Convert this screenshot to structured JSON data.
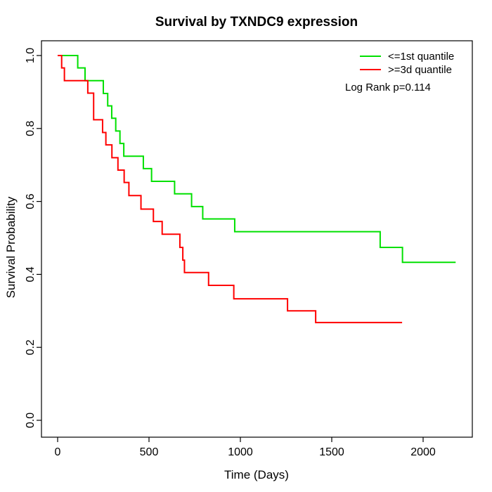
{
  "chart_data": {
    "type": "line",
    "subtype": "kaplan-meier-step-survival",
    "title": "Survival by TXNDC9 expression",
    "xlabel": "Time (Days)",
    "ylabel": "Survival Probability",
    "grid": false,
    "legend_position": "top-right",
    "annotation": "Log Rank p=0.114",
    "xlim": [
      -88,
      2265
    ],
    "ylim": [
      -0.04,
      1.04
    ],
    "x_ticks": [
      {
        "value": 0,
        "label": "0"
      },
      {
        "value": 500,
        "label": "500"
      },
      {
        "value": 1000,
        "label": "1000"
      },
      {
        "value": 1500,
        "label": "1500"
      },
      {
        "value": 2000,
        "label": "2000"
      }
    ],
    "y_ticks": [
      {
        "value": 0.0,
        "label": "0.0"
      },
      {
        "value": 0.2,
        "label": "0.2"
      },
      {
        "value": 0.4,
        "label": "0.4"
      },
      {
        "value": 0.6,
        "label": "0.6"
      },
      {
        "value": 0.8,
        "label": "0.8"
      },
      {
        "value": 1.0,
        "label": "1.0"
      }
    ],
    "series": [
      {
        "name": "<=1st quantile",
        "color": "#00e000",
        "end_time": 2178,
        "points": [
          [
            0,
            1.0
          ],
          [
            110,
            0.966
          ],
          [
            150,
            0.931
          ],
          [
            250,
            0.896
          ],
          [
            274,
            0.862
          ],
          [
            296,
            0.828
          ],
          [
            318,
            0.793
          ],
          [
            341,
            0.759
          ],
          [
            362,
            0.724
          ],
          [
            469,
            0.69
          ],
          [
            514,
            0.655
          ],
          [
            640,
            0.621
          ],
          [
            733,
            0.586
          ],
          [
            794,
            0.552
          ],
          [
            969,
            0.517
          ],
          [
            1765,
            0.474
          ],
          [
            1887,
            0.433
          ]
        ]
      },
      {
        "name": ">=3d quantile",
        "color": "#ff0000",
        "end_time": 1885,
        "points": [
          [
            0,
            1.0
          ],
          [
            22,
            0.966
          ],
          [
            37,
            0.931
          ],
          [
            165,
            0.897
          ],
          [
            197,
            0.824
          ],
          [
            246,
            0.789
          ],
          [
            264,
            0.755
          ],
          [
            297,
            0.72
          ],
          [
            330,
            0.686
          ],
          [
            364,
            0.652
          ],
          [
            390,
            0.616
          ],
          [
            456,
            0.579
          ],
          [
            524,
            0.545
          ],
          [
            572,
            0.51
          ],
          [
            669,
            0.474
          ],
          [
            685,
            0.439
          ],
          [
            694,
            0.405
          ],
          [
            826,
            0.37
          ],
          [
            964,
            0.333
          ],
          [
            1258,
            0.3
          ],
          [
            1412,
            0.268
          ]
        ]
      }
    ]
  }
}
